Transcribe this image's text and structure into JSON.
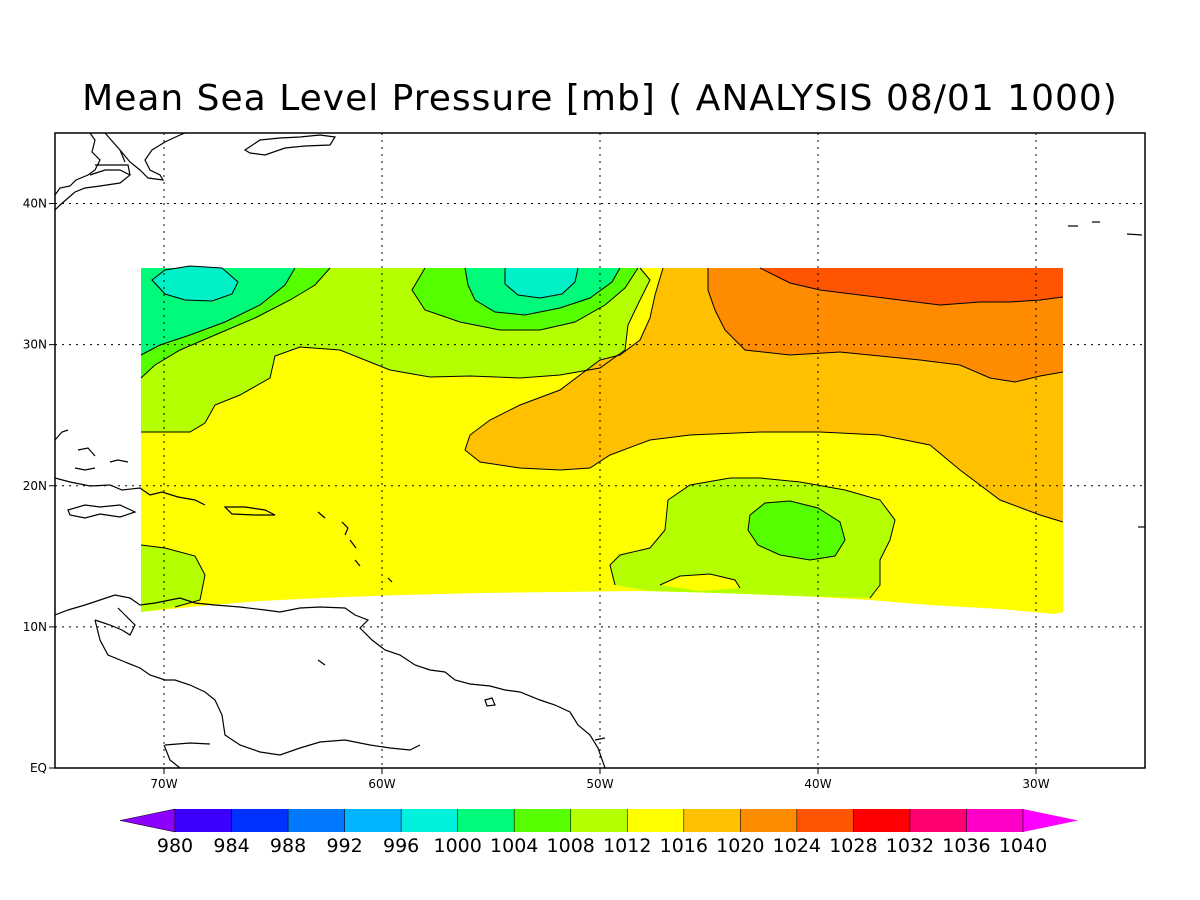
{
  "title": "Mean Sea Level Pressure [mb] ( ANALYSIS 08/01 1000)",
  "map": {
    "lon_range": [
      -75,
      -25
    ],
    "lat_range": [
      0,
      45
    ],
    "x_ticks": [
      {
        "lon": -70,
        "label": "70W"
      },
      {
        "lon": -60,
        "label": "60W"
      },
      {
        "lon": -50,
        "label": "50W"
      },
      {
        "lon": -40,
        "label": "40W"
      },
      {
        "lon": -30,
        "label": "30W"
      }
    ],
    "y_ticks": [
      {
        "lat": 0,
        "label": "EQ"
      },
      {
        "lat": 10,
        "label": "10N"
      },
      {
        "lat": 20,
        "label": "20N"
      },
      {
        "lat": 30,
        "label": "30N"
      },
      {
        "lat": 40,
        "label": "40N"
      }
    ],
    "grid": "dotted",
    "data_domain": {
      "lon": [
        -71,
        -29
      ],
      "lat": [
        11,
        35.5
      ]
    }
  },
  "pressure_regions": [
    {
      "level": "1004-1008",
      "color": "#00fa7a",
      "location": "NW corner, west of 65W near 33N"
    },
    {
      "level": "1000-1004",
      "color": "#00f0c8",
      "location": "low centre near 68W 34N"
    },
    {
      "level": "1004-1008",
      "color": "#00fa7a",
      "location": "north, near 54W 33N"
    },
    {
      "level": "1000-1004",
      "color": "#00f0c8",
      "location": "low centre near 53W 35N"
    },
    {
      "level": "1020-1024",
      "color": "#ffc000",
      "location": "central/east, 27-33N"
    },
    {
      "level": "1024-1028",
      "color": "#ff8c00",
      "location": "NE, north of 27N east of 43W"
    },
    {
      "level": "1028-1032",
      "color": "#ff5500",
      "location": "far NE, near 33-35N 30W"
    },
    {
      "level": "1012-1016",
      "color": "#b4ff00",
      "location": "around 42W 17N"
    },
    {
      "level": "1008-1012",
      "color": "#55ff00",
      "location": "low centre near 41W 16.5N"
    },
    {
      "level": "1012-1016",
      "color": "#b4ff00",
      "location": "SW corner near 70W 13N"
    }
  ],
  "colorbar": {
    "levels": [
      "980",
      "984",
      "988",
      "992",
      "996",
      "1000",
      "1004",
      "1008",
      "1012",
      "1016",
      "1020",
      "1024",
      "1028",
      "1032",
      "1036",
      "1040"
    ],
    "colors": [
      "#8c00ff",
      "#3c00ff",
      "#0032ff",
      "#0078ff",
      "#00b4ff",
      "#00f0dc",
      "#00fa7a",
      "#55ff00",
      "#b4ff00",
      "#ffff00",
      "#ffc000",
      "#ff8c00",
      "#ff5500",
      "#ff0000",
      "#ff0070",
      "#ff00c8",
      "#ff00ff"
    ]
  }
}
